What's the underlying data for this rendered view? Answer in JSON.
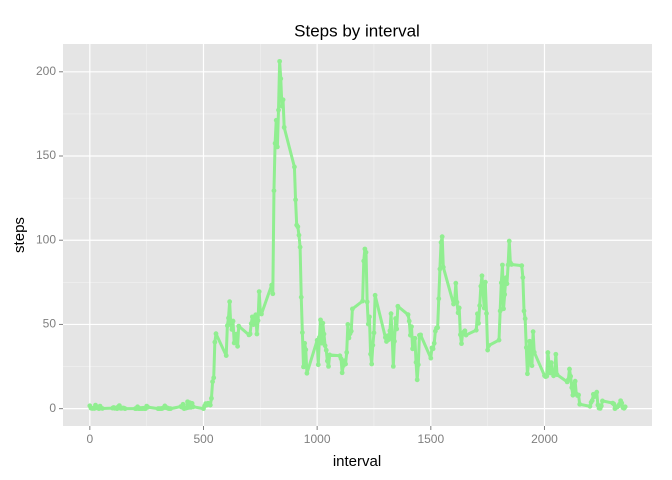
{
  "chart_data": {
    "type": "line",
    "title": "Steps by interval",
    "xlabel": "interval",
    "ylabel": "steps",
    "color": "#90ee90",
    "grid": true,
    "xlim": [
      -118,
      2473
    ],
    "ylim": [
      -10.3,
      216.5
    ],
    "xticks": [
      0,
      500,
      1000,
      1500,
      2000
    ],
    "yticks": [
      0,
      50,
      100,
      150,
      200
    ],
    "x": [
      0,
      5,
      10,
      15,
      20,
      25,
      30,
      35,
      40,
      45,
      50,
      55,
      100,
      105,
      110,
      115,
      120,
      125,
      130,
      135,
      140,
      145,
      150,
      155,
      200,
      205,
      210,
      215,
      220,
      225,
      230,
      235,
      240,
      245,
      250,
      255,
      300,
      305,
      310,
      315,
      320,
      325,
      330,
      335,
      340,
      345,
      350,
      355,
      400,
      405,
      410,
      415,
      420,
      425,
      430,
      435,
      440,
      445,
      450,
      455,
      500,
      505,
      510,
      515,
      520,
      525,
      530,
      535,
      540,
      545,
      550,
      555,
      600,
      605,
      610,
      615,
      620,
      625,
      630,
      635,
      640,
      645,
      650,
      655,
      700,
      705,
      710,
      715,
      720,
      725,
      730,
      735,
      740,
      745,
      750,
      755,
      800,
      805,
      810,
      815,
      820,
      825,
      830,
      835,
      840,
      845,
      850,
      855,
      900,
      905,
      910,
      915,
      920,
      925,
      930,
      935,
      940,
      945,
      950,
      955,
      1000,
      1005,
      1010,
      1015,
      1020,
      1025,
      1030,
      1035,
      1040,
      1045,
      1050,
      1055,
      1100,
      1105,
      1110,
      1115,
      1120,
      1125,
      1130,
      1135,
      1140,
      1145,
      1150,
      1155,
      1200,
      1205,
      1210,
      1215,
      1220,
      1225,
      1230,
      1235,
      1240,
      1245,
      1250,
      1255,
      1300,
      1305,
      1310,
      1315,
      1320,
      1325,
      1330,
      1335,
      1340,
      1345,
      1350,
      1355,
      1400,
      1405,
      1410,
      1415,
      1420,
      1425,
      1430,
      1435,
      1440,
      1445,
      1450,
      1455,
      1500,
      1505,
      1510,
      1515,
      1520,
      1525,
      1530,
      1535,
      1540,
      1545,
      1550,
      1555,
      1600,
      1605,
      1610,
      1615,
      1620,
      1625,
      1630,
      1635,
      1640,
      1645,
      1650,
      1655,
      1700,
      1705,
      1710,
      1715,
      1720,
      1725,
      1730,
      1735,
      1740,
      1745,
      1750,
      1755,
      1800,
      1805,
      1810,
      1815,
      1820,
      1825,
      1830,
      1835,
      1840,
      1845,
      1850,
      1855,
      1900,
      1905,
      1910,
      1915,
      1920,
      1925,
      1930,
      1935,
      1940,
      1945,
      1950,
      1955,
      2000,
      2005,
      2010,
      2015,
      2020,
      2025,
      2030,
      2035,
      2040,
      2045,
      2050,
      2055,
      2100,
      2105,
      2110,
      2115,
      2120,
      2125,
      2130,
      2135,
      2140,
      2145,
      2150,
      2155,
      2200,
      2205,
      2210,
      2215,
      2220,
      2225,
      2230,
      2235,
      2240,
      2245,
      2250,
      2255,
      2300,
      2305,
      2310,
      2315,
      2320,
      2325,
      2330,
      2335,
      2340,
      2345,
      2350,
      2355
    ],
    "values": [
      1.7,
      0.3,
      0.1,
      0.2,
      0.1,
      2.1,
      0.5,
      0.9,
      0,
      1.5,
      0.3,
      0.1,
      0.3,
      0.7,
      0.2,
      0.3,
      0,
      1.1,
      1.8,
      0.2,
      0.2,
      0.4,
      0.3,
      0,
      0,
      0,
      1.1,
      0,
      0,
      0.1,
      0,
      0.2,
      0,
      0,
      1.5,
      0.9,
      0,
      0,
      0,
      0,
      0.2,
      0.6,
      1.6,
      0.6,
      0.5,
      0.1,
      0,
      0,
      1.2,
      0.9,
      2.6,
      0,
      0.3,
      0.4,
      4.1,
      0.7,
      3.5,
      0.8,
      3.1,
      1.1,
      0,
      1.6,
      3,
      2.2,
      3.2,
      2.9,
      2.1,
      6.1,
      16,
      18.3,
      39.5,
      44.5,
      31.5,
      49.3,
      53.8,
      63.5,
      50,
      47,
      52,
      39,
      44,
      44.2,
      37,
      49,
      43.8,
      44.4,
      50.5,
      54.5,
      49.9,
      51,
      55.7,
      44.3,
      52.3,
      69.5,
      57.8,
      56.2,
      73.4,
      68.2,
      129.4,
      157.5,
      171.2,
      155.4,
      177.3,
      206.2,
      195.9,
      179.6,
      183.4,
      167,
      143.5,
      124,
      109,
      108,
      103,
      95.9,
      66.2,
      45.2,
      24.8,
      38.8,
      35,
      21,
      40.6,
      26.1,
      42.4,
      52.7,
      38.9,
      50.8,
      44.3,
      37.4,
      34.7,
      28.3,
      25.1,
      31.9,
      31.4,
      29.7,
      21.3,
      25.5,
      28.4,
      26.5,
      33.4,
      50,
      42,
      44.6,
      46,
      59.2,
      63.9,
      87.7,
      94.8,
      92.8,
      63.4,
      50.2,
      54.5,
      32.4,
      26.5,
      37.7,
      45,
      67.3,
      42.3,
      39.9,
      43.3,
      41,
      46.2,
      56.4,
      42.8,
      25.1,
      40,
      53.5,
      47.3,
      60.8,
      55.8,
      52,
      43.6,
      48.7,
      35.5,
      37.5,
      41.8,
      27.5,
      17.1,
      26.1,
      43.6,
      43.8,
      30,
      36.1,
      35.5,
      38.8,
      46,
      47.8,
      48.1,
      65.3,
      82.9,
      98.7,
      102.1,
      84,
      62.1,
      64.1,
      74.5,
      63.2,
      56.9,
      59.8,
      43.9,
      38.6,
      44.7,
      45.5,
      46.2,
      43.7,
      46.6,
      56.3,
      50.7,
      61.2,
      72.7,
      78.9,
      68.9,
      59.7,
      75.1,
      56.5,
      34.8,
      37.5,
      40.7,
      58,
      74.7,
      85.3,
      59.3,
      67.8,
      77.7,
      74.2,
      85.3,
      99.5,
      86.6,
      85.6,
      84.9,
      77.8,
      58,
      53.4,
      36.3,
      20.7,
      27.4,
      40,
      30.2,
      25.5,
      45.7,
      33.5,
      19.6,
      19,
      19.3,
      33.3,
      26.8,
      21.2,
      27.3,
      21.3,
      19.5,
      21.3,
      32.3,
      20.2,
      15.9,
      17.2,
      23.5,
      19.2,
      12.5,
      8,
      14.7,
      16.3,
      8.7,
      7.8,
      8.1,
      2.6,
      1.4,
      3.7,
      4.8,
      8.5,
      7.1,
      8.7,
      9.8,
      2.2,
      0.3,
      0.1,
      1.6,
      4.6,
      3.3,
      2.8,
      0,
      0.8,
      1,
      1.6,
      2.6,
      4.7,
      3.3,
      0.6,
      0.2,
      1.1
    ]
  }
}
